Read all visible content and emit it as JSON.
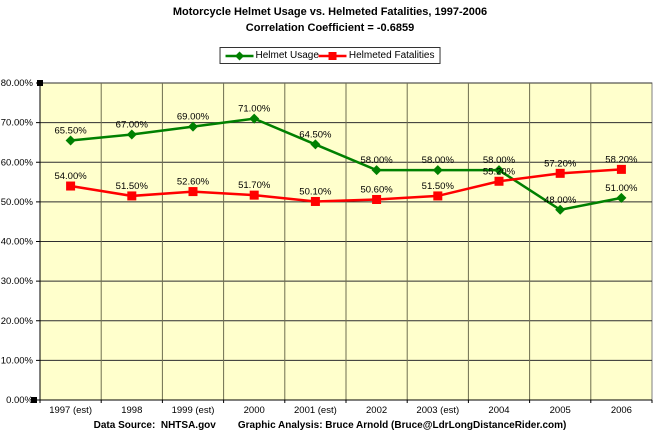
{
  "footer": {
    "data_source": "Data Source:  NHTSA.gov",
    "analysis": "Graphic Analysis: Bruce Arnold (Bruce@LdrLongDistanceRider.com)"
  },
  "chart_data": {
    "type": "line",
    "title": "Motorcycle Helmet Usage vs. Helmeted Fatalities, 1997-2006",
    "subtitle": "Correlation Coefficient = -0.6859",
    "categories": [
      "1997 (est)",
      "1998",
      "1999 (est)",
      "2000",
      "2001 (est)",
      "2002",
      "2003 (est)",
      "2004",
      "2005",
      "2006"
    ],
    "series": [
      {
        "name": "Helmet Usage",
        "color": "#008000",
        "marker": "diamond",
        "values": [
          65.5,
          67.0,
          69.0,
          71.0,
          64.5,
          58.0,
          58.0,
          58.0,
          48.0,
          51.0
        ],
        "labels": [
          "65.50%",
          "67.00%",
          "69.00%",
          "71.00%",
          "64.50%",
          "58.00%",
          "58.00%",
          "58.00%",
          "48.00%",
          "51.00%"
        ]
      },
      {
        "name": "Helmeted Fatalities",
        "color": "#FF0000",
        "marker": "square",
        "values": [
          54.0,
          51.5,
          52.6,
          51.7,
          50.1,
          50.6,
          51.5,
          55.2,
          57.2,
          58.2
        ],
        "labels": [
          "54.00%",
          "51.50%",
          "52.60%",
          "51.70%",
          "50.10%",
          "50.60%",
          "51.50%",
          "55.20%",
          "57.20%",
          "58.20%"
        ]
      }
    ],
    "ylim": [
      0,
      80
    ],
    "ytick_step": 10,
    "ytick_labels": [
      "0.00%",
      "10.00%",
      "20.00%",
      "30.00%",
      "40.00%",
      "50.00%",
      "60.00%",
      "70.00%",
      "80.00%"
    ],
    "xlabel": "",
    "ylabel": "",
    "grid": true,
    "data_labels": true,
    "legend_position": "top-center",
    "plot_bg": "#FFFFCC"
  }
}
